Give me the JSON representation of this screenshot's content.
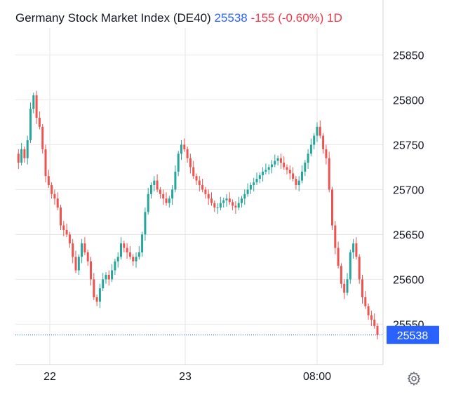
{
  "header": {
    "title": "Germany Stock Market Index (DE40)",
    "price": "25538",
    "change": "-155",
    "change_pct": "(-0.60%)",
    "interval": "1D"
  },
  "colors": {
    "up": "#26a69a",
    "down": "#ef5350",
    "last_price": "#2962ff",
    "grid": "#e6e6e6",
    "text": "#131722"
  },
  "icons": {
    "settings": "gear-icon"
  },
  "chart_data": {
    "type": "line",
    "subtype": "candlestick",
    "title": "Germany Stock Market Index (DE40)",
    "interval": "1D",
    "last_price": 25538,
    "last_price_label": "25538",
    "y_axis_side": "right",
    "ylim": [
      25505,
      25880
    ],
    "y_ticks": [
      25550,
      25600,
      25650,
      25700,
      25750,
      25800,
      25850
    ],
    "y_tick_labels": [
      "25550",
      "25600",
      "25650",
      "25700",
      "25750",
      "25800",
      "25850"
    ],
    "x_tick_labels": [
      "22",
      "23",
      "08:00"
    ],
    "grid": true,
    "legend": "none",
    "series": [
      {
        "values": [
          25740,
          25730,
          25745,
          25735,
          25755,
          25790,
          25805,
          25780,
          25770,
          25745,
          25715,
          25705,
          25695,
          25690,
          25680,
          25660,
          25655,
          25650,
          25640,
          25625,
          25610,
          25625,
          25640,
          25630,
          25620,
          25600,
          25580,
          25575,
          25590,
          25600,
          25605,
          25600,
          25610,
          25620,
          25625,
          25640,
          25635,
          25630,
          25625,
          25620,
          25625,
          25630,
          25650,
          25675,
          25695,
          25705,
          25710,
          25700,
          25695,
          25690,
          25685,
          25690,
          25700,
          25720,
          25740,
          25750,
          25745,
          25735,
          25725,
          25715,
          25710,
          25705,
          25700,
          25695,
          25690,
          25685,
          25680,
          25680,
          25685,
          25688,
          25690,
          25686,
          25682,
          25680,
          25685,
          25690,
          25695,
          25700,
          25705,
          25708,
          25712,
          25716,
          25720,
          25722,
          25725,
          25728,
          25732,
          25735,
          25730,
          25725,
          25722,
          25718,
          25712,
          25705,
          25710,
          25720,
          25730,
          25740,
          25750,
          25760,
          25770,
          25760,
          25745,
          25735,
          25700,
          25660,
          25635,
          25615,
          25595,
          25585,
          25600,
          25630,
          25640,
          25625,
          25600,
          25580,
          25570,
          25560,
          25555,
          25548,
          25538
        ]
      }
    ]
  }
}
